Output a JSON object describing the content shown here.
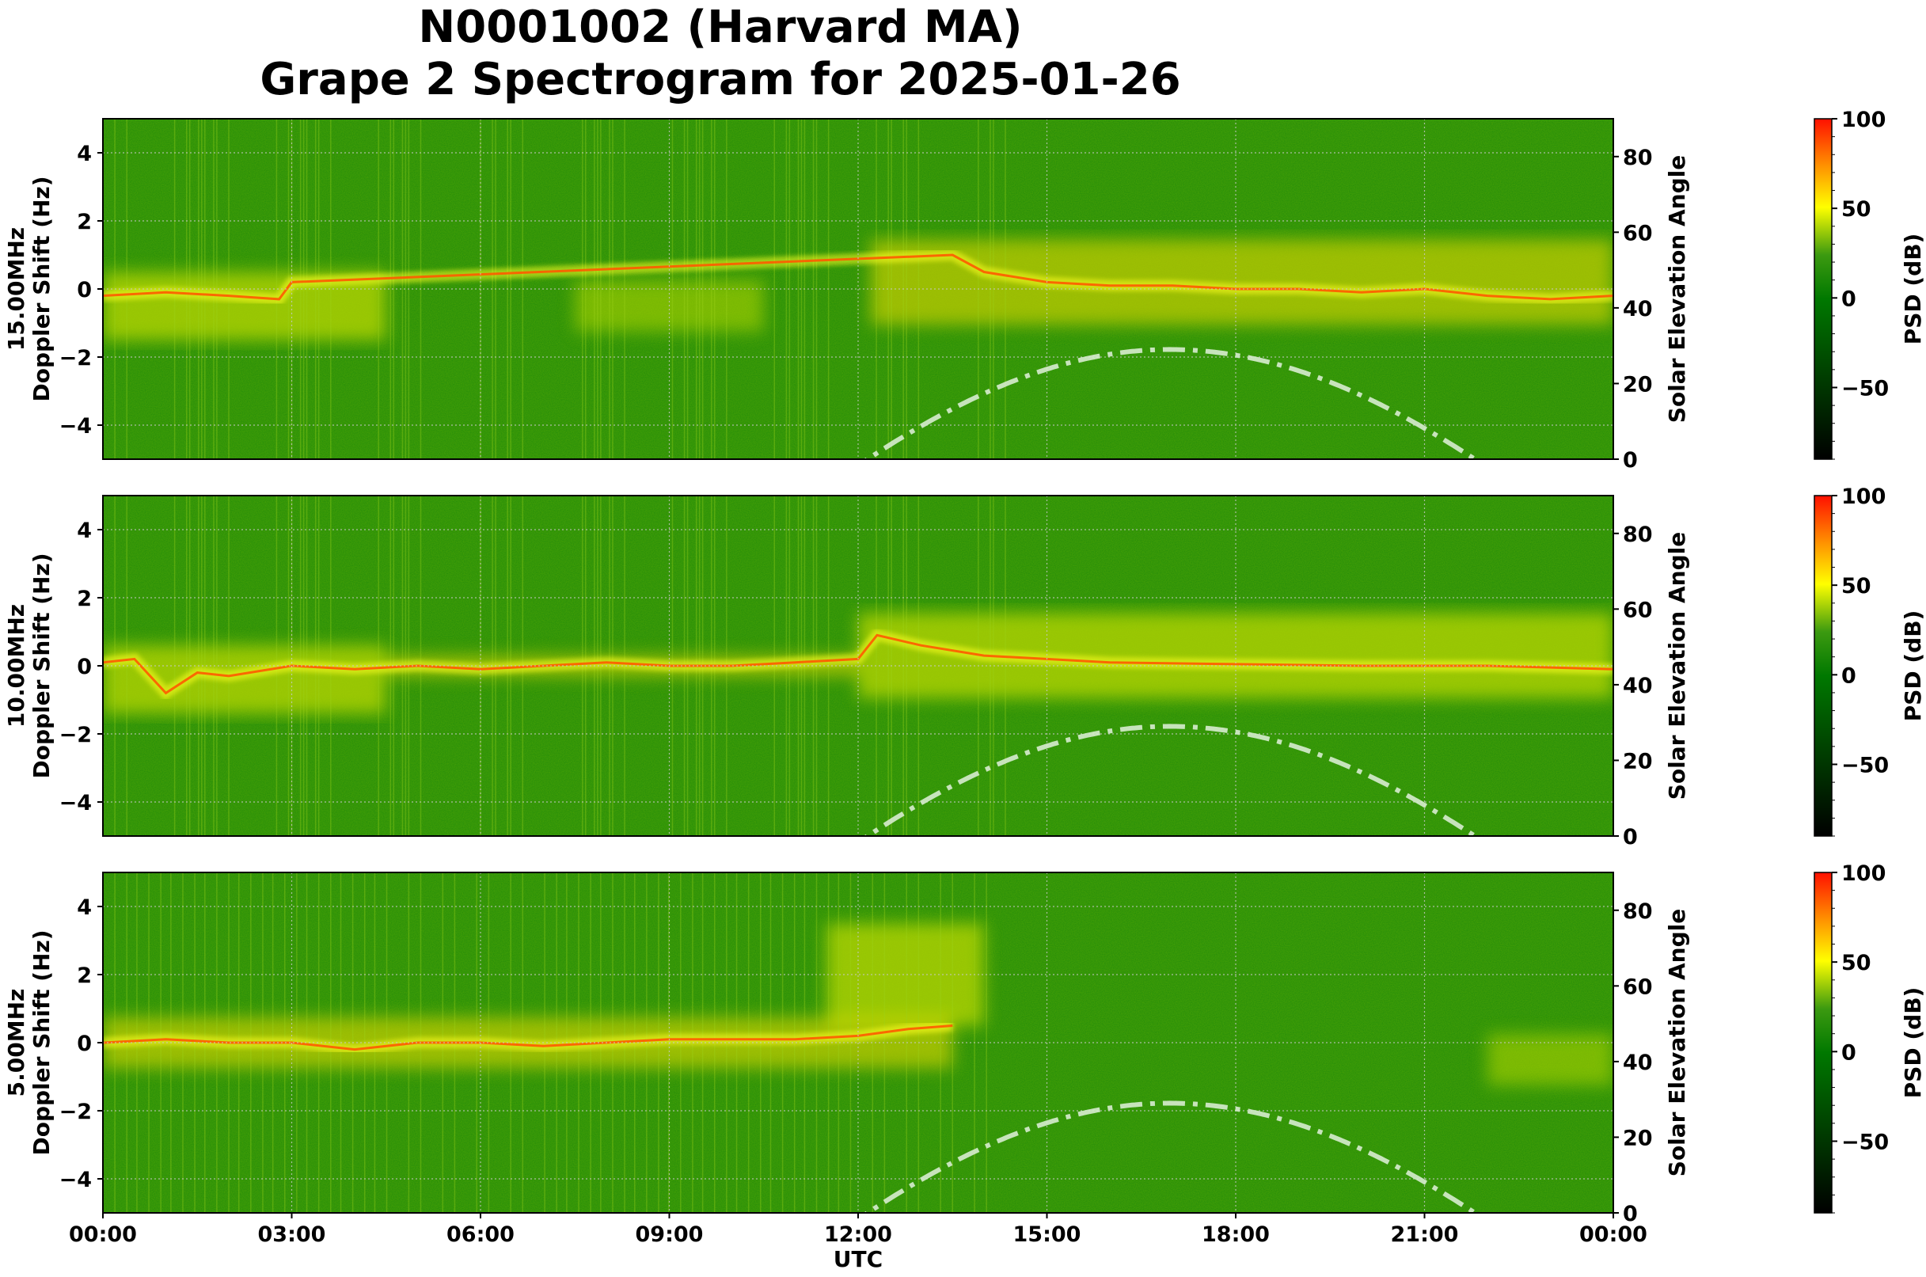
{
  "title": {
    "line1": "N0001002 (Harvard MA)",
    "line2": "Grape 2 Spectrogram for 2025-01-26"
  },
  "colors": {
    "background_green": "#0a7d05",
    "mid_green": "#3c9a10",
    "yellow": "#ffff00",
    "orange": "#ff8800",
    "red": "#ff1a00",
    "solar_curve": "#d8ecd0",
    "grid": "#bfbfbf"
  },
  "x_axis": {
    "label": "UTC",
    "ticks": [
      "00:00",
      "03:00",
      "06:00",
      "09:00",
      "12:00",
      "15:00",
      "18:00",
      "21:00",
      "00:00"
    ],
    "range_hours": [
      0,
      24
    ]
  },
  "colorbar": {
    "label": "PSD (dB)",
    "ticks": [
      "100",
      "50",
      "0",
      "−50"
    ],
    "tick_values": [
      100,
      50,
      0,
      -50
    ],
    "range": [
      -90,
      100
    ]
  },
  "chart_data": [
    {
      "type": "heatmap",
      "title": "15.00MHz",
      "ylabel": "15.00MHz\nDoppler Shift (Hz)",
      "ylabel_line1": "15.00MHz",
      "ylabel_line2": "Doppler Shift (Hz)",
      "y_ticks": [
        "4",
        "2",
        "0",
        "−2",
        "−4"
      ],
      "ylim": [
        -5,
        5
      ],
      "y2label": "Solar Elevation Angle",
      "y2_ticks": [
        "80",
        "60",
        "40",
        "20",
        "0"
      ],
      "y2lim": [
        0,
        90
      ],
      "xlabel": "",
      "x_range_hours": [
        0,
        24
      ],
      "colorbar_range_db": [
        -90,
        100
      ],
      "solar_elevation": {
        "rise_hour": 12.15,
        "peak_hour": 16.95,
        "peak_deg": 29,
        "set_hour": 21.8
      },
      "dominant_trace": [
        [
          0,
          -0.2
        ],
        [
          1,
          -0.1
        ],
        [
          2,
          -0.2
        ],
        [
          2.8,
          -0.3
        ],
        [
          3.0,
          0.2
        ],
        [
          13.5,
          1.0
        ],
        [
          14,
          0.5
        ],
        [
          15,
          0.2
        ],
        [
          16,
          0.1
        ],
        [
          17,
          0.1
        ],
        [
          18,
          0.0
        ],
        [
          19,
          0.0
        ],
        [
          20,
          -0.1
        ],
        [
          21,
          0.0
        ],
        [
          22,
          -0.2
        ],
        [
          23,
          -0.3
        ],
        [
          24,
          -0.2
        ]
      ],
      "signal_regions": [
        {
          "from_hour": 0,
          "to_hour": 4.5,
          "center_hz": -0.5,
          "spread_hz": 2.0,
          "level": "yellow"
        },
        {
          "from_hour": 7.5,
          "to_hour": 10.5,
          "center_hz": -0.5,
          "spread_hz": 1.5,
          "level": "yellow-green"
        },
        {
          "from_hour": 12.2,
          "to_hour": 24,
          "center_hz": 0.2,
          "spread_hz": 2.5,
          "level": "yellow-orange"
        }
      ]
    },
    {
      "type": "heatmap",
      "title": "10.00MHz",
      "ylabel": "10.00MHz\nDoppler Shift (Hz)",
      "ylabel_line1": "10.00MHz",
      "ylabel_line2": "Doppler Shift (Hz)",
      "y_ticks": [
        "4",
        "2",
        "0",
        "−2",
        "−4"
      ],
      "ylim": [
        -5,
        5
      ],
      "y2label": "Solar Elevation Angle",
      "y2_ticks": [
        "80",
        "60",
        "40",
        "20",
        "0"
      ],
      "y2lim": [
        0,
        90
      ],
      "xlabel": "",
      "x_range_hours": [
        0,
        24
      ],
      "colorbar_range_db": [
        -90,
        100
      ],
      "solar_elevation": {
        "rise_hour": 12.15,
        "peak_hour": 16.95,
        "peak_deg": 29,
        "set_hour": 21.8
      },
      "dominant_trace": [
        [
          0,
          0.1
        ],
        [
          0.5,
          0.2
        ],
        [
          1,
          -0.8
        ],
        [
          1.5,
          -0.2
        ],
        [
          2,
          -0.3
        ],
        [
          3,
          0.0
        ],
        [
          4,
          -0.1
        ],
        [
          5,
          0.0
        ],
        [
          6,
          -0.1
        ],
        [
          7,
          0.0
        ],
        [
          8,
          0.1
        ],
        [
          9,
          0.0
        ],
        [
          10,
          0.0
        ],
        [
          11,
          0.1
        ],
        [
          12,
          0.2
        ],
        [
          12.3,
          0.9
        ],
        [
          13,
          0.6
        ],
        [
          14,
          0.3
        ],
        [
          16,
          0.1
        ],
        [
          18,
          0.05
        ],
        [
          20,
          0.0
        ],
        [
          22,
          0.0
        ],
        [
          24,
          -0.1
        ]
      ],
      "signal_regions": [
        {
          "from_hour": 0,
          "to_hour": 4.5,
          "center_hz": -0.4,
          "spread_hz": 2.0,
          "level": "yellow"
        },
        {
          "from_hour": 4.5,
          "to_hour": 12,
          "center_hz": 0.0,
          "spread_hz": 0.6,
          "level": "yellow-orange"
        },
        {
          "from_hour": 12,
          "to_hour": 24,
          "center_hz": 0.3,
          "spread_hz": 2.5,
          "level": "yellow"
        }
      ]
    },
    {
      "type": "heatmap",
      "title": "5.00MHz",
      "ylabel": "5.00MHz\nDoppler Shift (Hz)",
      "ylabel_line1": "5.00MHz",
      "ylabel_line2": "Doppler Shift (Hz)",
      "y_ticks": [
        "4",
        "2",
        "0",
        "−2",
        "−4"
      ],
      "ylim": [
        -5,
        5
      ],
      "y2label": "Solar Elevation Angle",
      "y2_ticks": [
        "80",
        "60",
        "40",
        "20",
        "0"
      ],
      "y2lim": [
        0,
        90
      ],
      "xlabel": "UTC",
      "x_range_hours": [
        0,
        24
      ],
      "colorbar_range_db": [
        -90,
        100
      ],
      "solar_elevation": {
        "rise_hour": 12.15,
        "peak_hour": 16.95,
        "peak_deg": 29,
        "set_hour": 21.8
      },
      "dominant_trace": [
        [
          0,
          0.0
        ],
        [
          1,
          0.1
        ],
        [
          2,
          0.0
        ],
        [
          3,
          0.0
        ],
        [
          4,
          -0.2
        ],
        [
          5,
          0.0
        ],
        [
          6,
          0.0
        ],
        [
          7,
          -0.1
        ],
        [
          8,
          0.0
        ],
        [
          9,
          0.1
        ],
        [
          10,
          0.1
        ],
        [
          11,
          0.1
        ],
        [
          12,
          0.2
        ],
        [
          12.8,
          0.4
        ],
        [
          13.5,
          0.5
        ]
      ],
      "signal_regions": [
        {
          "from_hour": 0,
          "to_hour": 13.5,
          "center_hz": 0.0,
          "spread_hz": 1.5,
          "level": "yellow-orange"
        },
        {
          "from_hour": 11.5,
          "to_hour": 14,
          "center_hz": 2.0,
          "spread_hz": 3.0,
          "level": "yellow"
        },
        {
          "from_hour": 22,
          "to_hour": 24,
          "center_hz": -0.5,
          "spread_hz": 1.5,
          "level": "yellow-green"
        }
      ]
    }
  ]
}
